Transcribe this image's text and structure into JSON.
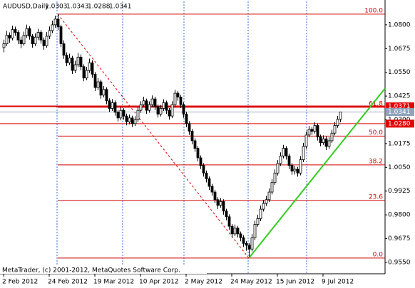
{
  "chart_data": {
    "type": "candlestick",
    "title": "AUDUSD,Daily",
    "footer": "MetaTrader, (c) 2001-2012, MetaQuotes Software Corp.",
    "categories": [
      "2 Feb 2012",
      null,
      null,
      null,
      null,
      null,
      null,
      null,
      null,
      null,
      null,
      null,
      null,
      null,
      null,
      null,
      "24 Feb 2012",
      null,
      null,
      null,
      null,
      null,
      null,
      null,
      null,
      null,
      null,
      null,
      null,
      null,
      null,
      null,
      "19 Mar 2012",
      null,
      null,
      null,
      null,
      null,
      null,
      null,
      null,
      null,
      null,
      null,
      null,
      null,
      null,
      null,
      "10 Apr 2012",
      null,
      null,
      null,
      null,
      null,
      null,
      null,
      null,
      null,
      null,
      null,
      null,
      null,
      null,
      null,
      "2 May 2012",
      null,
      null,
      null,
      null,
      null,
      null,
      null,
      null,
      null,
      null,
      null,
      null,
      null,
      null,
      null,
      "24 May 2012",
      null,
      null,
      null,
      null,
      null,
      null,
      null,
      null,
      null,
      null,
      null,
      null,
      null,
      null,
      null,
      "15 Jun 2012",
      null,
      null,
      null,
      null,
      null,
      null,
      null,
      null,
      null,
      null,
      null,
      null,
      null,
      null,
      null,
      "9 Jul 2012",
      null,
      null,
      null,
      null,
      null,
      null
    ],
    "ohlc": [
      [
        1.068,
        1.0722,
        1.0655,
        1.07
      ],
      [
        1.07,
        1.0768,
        1.0688,
        1.0745
      ],
      [
        1.0745,
        1.076,
        1.0705,
        1.073
      ],
      [
        1.073,
        1.0795,
        1.0718,
        1.0775
      ],
      [
        1.0775,
        1.079,
        1.0742,
        1.076
      ],
      [
        1.076,
        1.0772,
        1.0698,
        1.072
      ],
      [
        1.072,
        1.0738,
        1.0676,
        1.07
      ],
      [
        1.07,
        1.0764,
        1.069,
        1.0745
      ],
      [
        1.0745,
        1.0801,
        1.0731,
        1.078
      ],
      [
        1.078,
        1.0792,
        1.0722,
        1.074
      ],
      [
        1.074,
        1.0751,
        1.068,
        1.07
      ],
      [
        1.07,
        1.0755,
        1.0688,
        1.0735
      ],
      [
        1.0735,
        1.0778,
        1.0719,
        1.076
      ],
      [
        1.076,
        1.0772,
        1.0701,
        1.072
      ],
      [
        1.072,
        1.0733,
        1.0668,
        1.069
      ],
      [
        1.069,
        1.0762,
        1.0679,
        1.074
      ],
      [
        1.074,
        1.0791,
        1.0725,
        1.077
      ],
      [
        1.077,
        1.0822,
        1.0756,
        1.08
      ],
      [
        1.08,
        1.0848,
        1.0784,
        1.083
      ],
      [
        1.083,
        1.0856,
        1.0772,
        1.079
      ],
      [
        1.079,
        1.0801,
        1.0682,
        1.07
      ],
      [
        1.07,
        1.0718,
        1.0621,
        1.064
      ],
      [
        1.064,
        1.0655,
        1.0582,
        1.06
      ],
      [
        1.06,
        1.0648,
        1.0588,
        1.0625
      ],
      [
        1.0625,
        1.0637,
        1.0541,
        1.056
      ],
      [
        1.056,
        1.0611,
        1.0546,
        1.059
      ],
      [
        1.059,
        1.0652,
        1.0577,
        1.063
      ],
      [
        1.063,
        1.0644,
        1.0561,
        1.058
      ],
      [
        1.058,
        1.0592,
        1.0503,
        1.052
      ],
      [
        1.052,
        1.0579,
        1.0508,
        1.056
      ],
      [
        1.056,
        1.0622,
        1.0547,
        1.06
      ],
      [
        1.06,
        1.0613,
        1.0521,
        1.054
      ],
      [
        1.054,
        1.0551,
        1.0452,
        1.047
      ],
      [
        1.047,
        1.0519,
        1.0456,
        1.05
      ],
      [
        1.05,
        1.0512,
        1.0411,
        1.043
      ],
      [
        1.043,
        1.0478,
        1.0418,
        1.046
      ],
      [
        1.046,
        1.0471,
        1.0382,
        1.04
      ],
      [
        1.04,
        1.0413,
        1.0341,
        1.036
      ],
      [
        1.036,
        1.0409,
        1.0347,
        1.039
      ],
      [
        1.039,
        1.0402,
        1.0322,
        1.034
      ],
      [
        1.034,
        1.0352,
        1.0291,
        1.031
      ],
      [
        1.031,
        1.0368,
        1.0297,
        1.035
      ],
      [
        1.035,
        1.0361,
        1.0301,
        1.032
      ],
      [
        1.032,
        1.0333,
        1.0271,
        1.029
      ],
      [
        1.029,
        1.0328,
        1.0276,
        1.031
      ],
      [
        1.031,
        1.0322,
        1.0262,
        1.028
      ],
      [
        1.028,
        1.0319,
        1.0268,
        1.03
      ],
      [
        1.03,
        1.0369,
        1.0288,
        1.035
      ],
      [
        1.035,
        1.0398,
        1.0337,
        1.038
      ],
      [
        1.038,
        1.0421,
        1.0366,
        1.04
      ],
      [
        1.04,
        1.0412,
        1.0331,
        1.035
      ],
      [
        1.035,
        1.0397,
        1.0338,
        1.038
      ],
      [
        1.038,
        1.0428,
        1.0367,
        1.041
      ],
      [
        1.041,
        1.0422,
        1.0351,
        1.037
      ],
      [
        1.037,
        1.0381,
        1.0312,
        1.033
      ],
      [
        1.033,
        1.0378,
        1.0318,
        1.036
      ],
      [
        1.036,
        1.0408,
        1.0347,
        1.039
      ],
      [
        1.039,
        1.0401,
        1.0331,
        1.035
      ],
      [
        1.035,
        1.0362,
        1.0301,
        1.032
      ],
      [
        1.032,
        1.0398,
        1.0309,
        1.038
      ],
      [
        1.038,
        1.0458,
        1.0367,
        1.044
      ],
      [
        1.044,
        1.0452,
        1.0401,
        1.042
      ],
      [
        1.042,
        1.0431,
        1.0362,
        1.038
      ],
      [
        1.038,
        1.0392,
        1.0311,
        1.033
      ],
      [
        1.033,
        1.0342,
        1.0261,
        1.028
      ],
      [
        1.028,
        1.0293,
        1.0221,
        1.024
      ],
      [
        1.024,
        1.0252,
        1.0171,
        1.019
      ],
      [
        1.019,
        1.0203,
        1.0131,
        1.015
      ],
      [
        1.015,
        1.0162,
        1.0081,
        1.01
      ],
      [
        1.01,
        1.0113,
        1.0041,
        1.006
      ],
      [
        1.006,
        1.0072,
        1.0001,
        1.002
      ],
      [
        1.002,
        1.0033,
        0.9971,
        0.999
      ],
      [
        0.999,
        1.0002,
        0.9931,
        0.995
      ],
      [
        0.995,
        0.9963,
        0.9901,
        0.992
      ],
      [
        0.992,
        0.9932,
        0.9861,
        0.988
      ],
      [
        0.988,
        0.9893,
        0.9831,
        0.985
      ],
      [
        0.985,
        0.9889,
        0.9838,
        0.987
      ],
      [
        0.987,
        0.9882,
        0.9801,
        0.982
      ],
      [
        0.982,
        0.9832,
        0.9771,
        0.979
      ],
      [
        0.979,
        0.9803,
        0.9721,
        0.974
      ],
      [
        0.974,
        0.9752,
        0.9681,
        0.97
      ],
      [
        0.97,
        0.9749,
        0.9688,
        0.973
      ],
      [
        0.973,
        0.9742,
        0.9681,
        0.97
      ],
      [
        0.97,
        0.9712,
        0.9661,
        0.968
      ],
      [
        0.968,
        0.9693,
        0.9631,
        0.965
      ],
      [
        0.965,
        0.9662,
        0.9611,
        0.964
      ],
      [
        0.964,
        0.9652,
        0.9573,
        0.962
      ],
      [
        0.962,
        0.9699,
        0.9608,
        0.968
      ],
      [
        0.968,
        0.9769,
        0.9667,
        0.975
      ],
      [
        0.975,
        0.9801,
        0.9738,
        0.978
      ],
      [
        0.978,
        0.9849,
        0.9767,
        0.983
      ],
      [
        0.983,
        0.9878,
        0.9818,
        0.986
      ],
      [
        0.986,
        0.9899,
        0.9847,
        0.988
      ],
      [
        0.988,
        0.9939,
        0.9868,
        0.992
      ],
      [
        0.992,
        0.9989,
        0.9907,
        0.997
      ],
      [
        0.997,
        1.0039,
        0.9958,
        1.002
      ],
      [
        1.002,
        1.0088,
        1.0007,
        1.007
      ],
      [
        1.007,
        1.0129,
        1.0058,
        1.011
      ],
      [
        1.011,
        1.0168,
        1.0097,
        1.015
      ],
      [
        1.015,
        1.0162,
        1.0091,
        1.011
      ],
      [
        1.011,
        1.0122,
        1.0041,
        1.006
      ],
      [
        1.006,
        1.0072,
        1.0011,
        1.003
      ],
      [
        1.003,
        1.0058,
        1.0012,
        1.004
      ],
      [
        1.004,
        1.0053,
        1.0001,
        1.002
      ],
      [
        1.002,
        1.0109,
        1.0008,
        1.009
      ],
      [
        1.009,
        1.0179,
        1.0078,
        1.016
      ],
      [
        1.016,
        1.0239,
        1.0147,
        1.022
      ],
      [
        1.022,
        1.0268,
        1.0208,
        1.025
      ],
      [
        1.025,
        1.0262,
        1.0221,
        1.024
      ],
      [
        1.024,
        1.0288,
        1.0228,
        1.027
      ],
      [
        1.027,
        1.0282,
        1.0191,
        1.021
      ],
      [
        1.021,
        1.0222,
        1.0161,
        1.018
      ],
      [
        1.018,
        1.0218,
        1.0168,
        1.02
      ],
      [
        1.02,
        1.0212,
        1.0141,
        1.016
      ],
      [
        1.016,
        1.0208,
        1.0148,
        1.019
      ],
      [
        1.019,
        1.0248,
        1.0178,
        1.023
      ],
      [
        1.023,
        1.0288,
        1.0218,
        1.027
      ],
      [
        1.027,
        1.0321,
        1.0258,
        1.0303
      ],
      [
        1.0303,
        1.0343,
        1.0288,
        1.0341
      ]
    ],
    "ylim": [
      0.949,
      1.0923
    ],
    "yticks": [
      {
        "value": 1.08,
        "label": "1.0800"
      },
      1.0675,
      {
        "value": 1.055,
        "label": "1.0550"
      },
      1.0425,
      {
        "value": 1.03,
        "label": "1.0300"
      },
      1.0175,
      {
        "value": 1.005,
        "label": "1.0050"
      },
      0.9925,
      {
        "value": 0.98,
        "label": "0.9800"
      },
      0.9675,
      {
        "value": 0.955,
        "label": "0.9550"
      }
    ],
    "hlines": [
      {
        "value": 1.0371,
        "color": "#e00000"
      },
      {
        "value": {
          "value": 1.028,
          "label": "1.0280"
        },
        "color": "#e00000"
      }
    ],
    "fib": {
      "high": 1.0856,
      "low": 0.9573,
      "high_bar": 19,
      "low_bar": 86,
      "color": "#d00000",
      "levels": [
        {
          "value": 100,
          "label": "100.0"
        },
        61.8,
        {
          "value": 50,
          "label": "50.0"
        },
        38.2,
        23.6,
        {
          "value": 0,
          "label": "0.0"
        }
      ]
    },
    "trendline": {
      "x": [
        86,
        118
      ],
      "y": [
        0.9573,
        1.0171
      ],
      "color": "#33cc22"
    }
  }
}
